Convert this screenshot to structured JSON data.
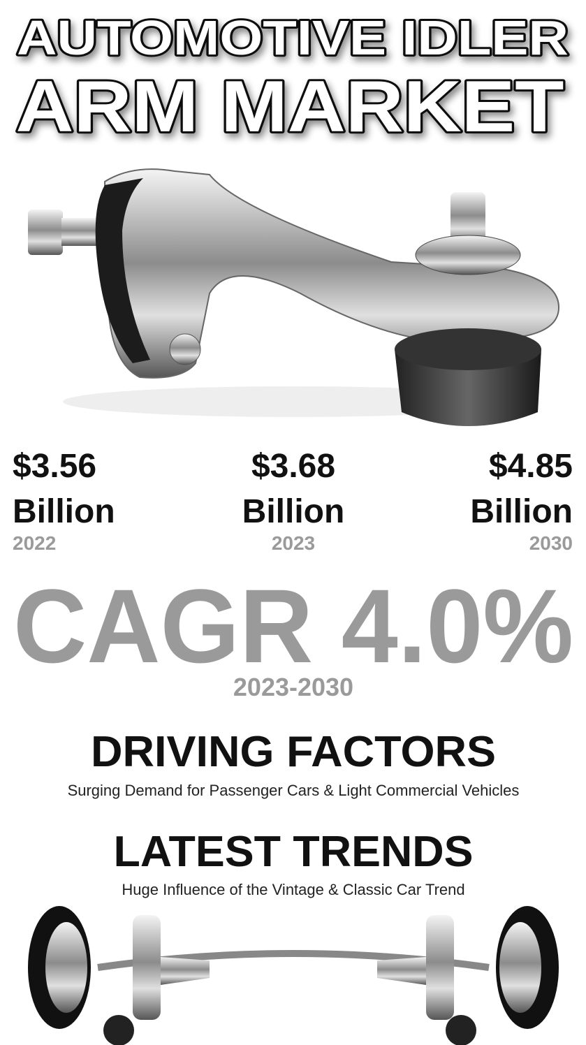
{
  "header": {
    "title_line1": "AUTOMOTIVE IDLER",
    "title_line2": "ARM MARKET"
  },
  "stats": [
    {
      "amount": "$3.56",
      "unit": "Billion",
      "year": "2022"
    },
    {
      "amount": "$3.68",
      "unit": "Billion",
      "year": "2023"
    },
    {
      "amount": "$4.85",
      "unit": "Billion",
      "year": "2030"
    }
  ],
  "cagr": {
    "text": "CAGR 4.0%",
    "period": "2023-2030"
  },
  "sections": [
    {
      "heading": "DRIVING FACTORS",
      "text": "Surging Demand for Passenger Cars & Light Commercial Vehicles"
    },
    {
      "heading": "LATEST TRENDS",
      "text": "Huge Influence of the Vintage & Classic Car Trend"
    }
  ]
}
